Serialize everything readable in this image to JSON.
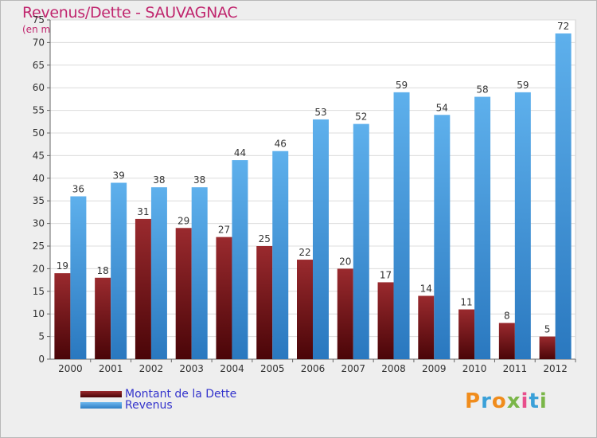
{
  "header": {
    "title": "Revenus/Dette - SAUVAGNAC",
    "subtitle": "(en milliers d'€)"
  },
  "chart_data": {
    "type": "bar",
    "title": "Revenus/Dette - SAUVAGNAC",
    "subtitle": "(en milliers d'€)",
    "xlabel": "",
    "ylabel": "",
    "ylim": [
      0,
      75
    ],
    "yticks": [
      0,
      5,
      10,
      15,
      20,
      25,
      30,
      35,
      40,
      45,
      50,
      55,
      60,
      65,
      70,
      75
    ],
    "grid": true,
    "categories": [
      "2000",
      "2001",
      "2002",
      "2003",
      "2004",
      "2005",
      "2006",
      "2007",
      "2008",
      "2009",
      "2010",
      "2011",
      "2012"
    ],
    "series": [
      {
        "name": "Montant de la Dette",
        "color": "#7a1216",
        "values": [
          19,
          18,
          31,
          29,
          27,
          25,
          22,
          20,
          17,
          14,
          11,
          8,
          5
        ]
      },
      {
        "name": "Revenus",
        "color": "#4a9fe0",
        "values": [
          36,
          39,
          38,
          38,
          44,
          46,
          53,
          52,
          59,
          54,
          58,
          59,
          72
        ]
      }
    ],
    "legend_position": "bottom-left"
  },
  "legend": {
    "items": [
      {
        "label": "Montant de la Dette",
        "color": "#7a1216"
      },
      {
        "label": "Revenus",
        "color": "#4a9fe0"
      }
    ]
  },
  "logo": {
    "letters": [
      "P",
      "r",
      "o",
      "x",
      "i",
      "t",
      "i"
    ],
    "colors": [
      "#f08c1c",
      "#3aa0d8",
      "#f08c1c",
      "#7ab648",
      "#e84e8c",
      "#3aa0d8",
      "#7ab648"
    ]
  }
}
